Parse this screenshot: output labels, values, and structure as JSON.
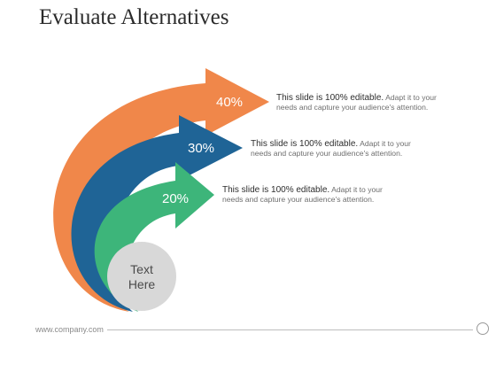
{
  "title": "Evaluate Alternatives",
  "arrows": [
    {
      "label": "40%",
      "color": "#F0874A"
    },
    {
      "label": "30%",
      "color": "#1F6496"
    },
    {
      "label": "20%",
      "color": "#3DB57A"
    }
  ],
  "center": {
    "line1": "Text",
    "line2": "Here",
    "color": "#D8D8D8"
  },
  "descriptions": [
    {
      "bold": "This slide is 100% editable.",
      "rest": "Adapt it to your",
      "line2": "needs and capture your audience's attention."
    },
    {
      "bold": "This slide is 100% editable.",
      "rest": "Adapt it to your",
      "line2": "needs and capture your audience's attention."
    },
    {
      "bold": "This slide is 100% editable.",
      "rest": "Adapt it to your",
      "line2": "needs and capture your audience's attention."
    }
  ],
  "footer": {
    "text": "www.company.com"
  }
}
